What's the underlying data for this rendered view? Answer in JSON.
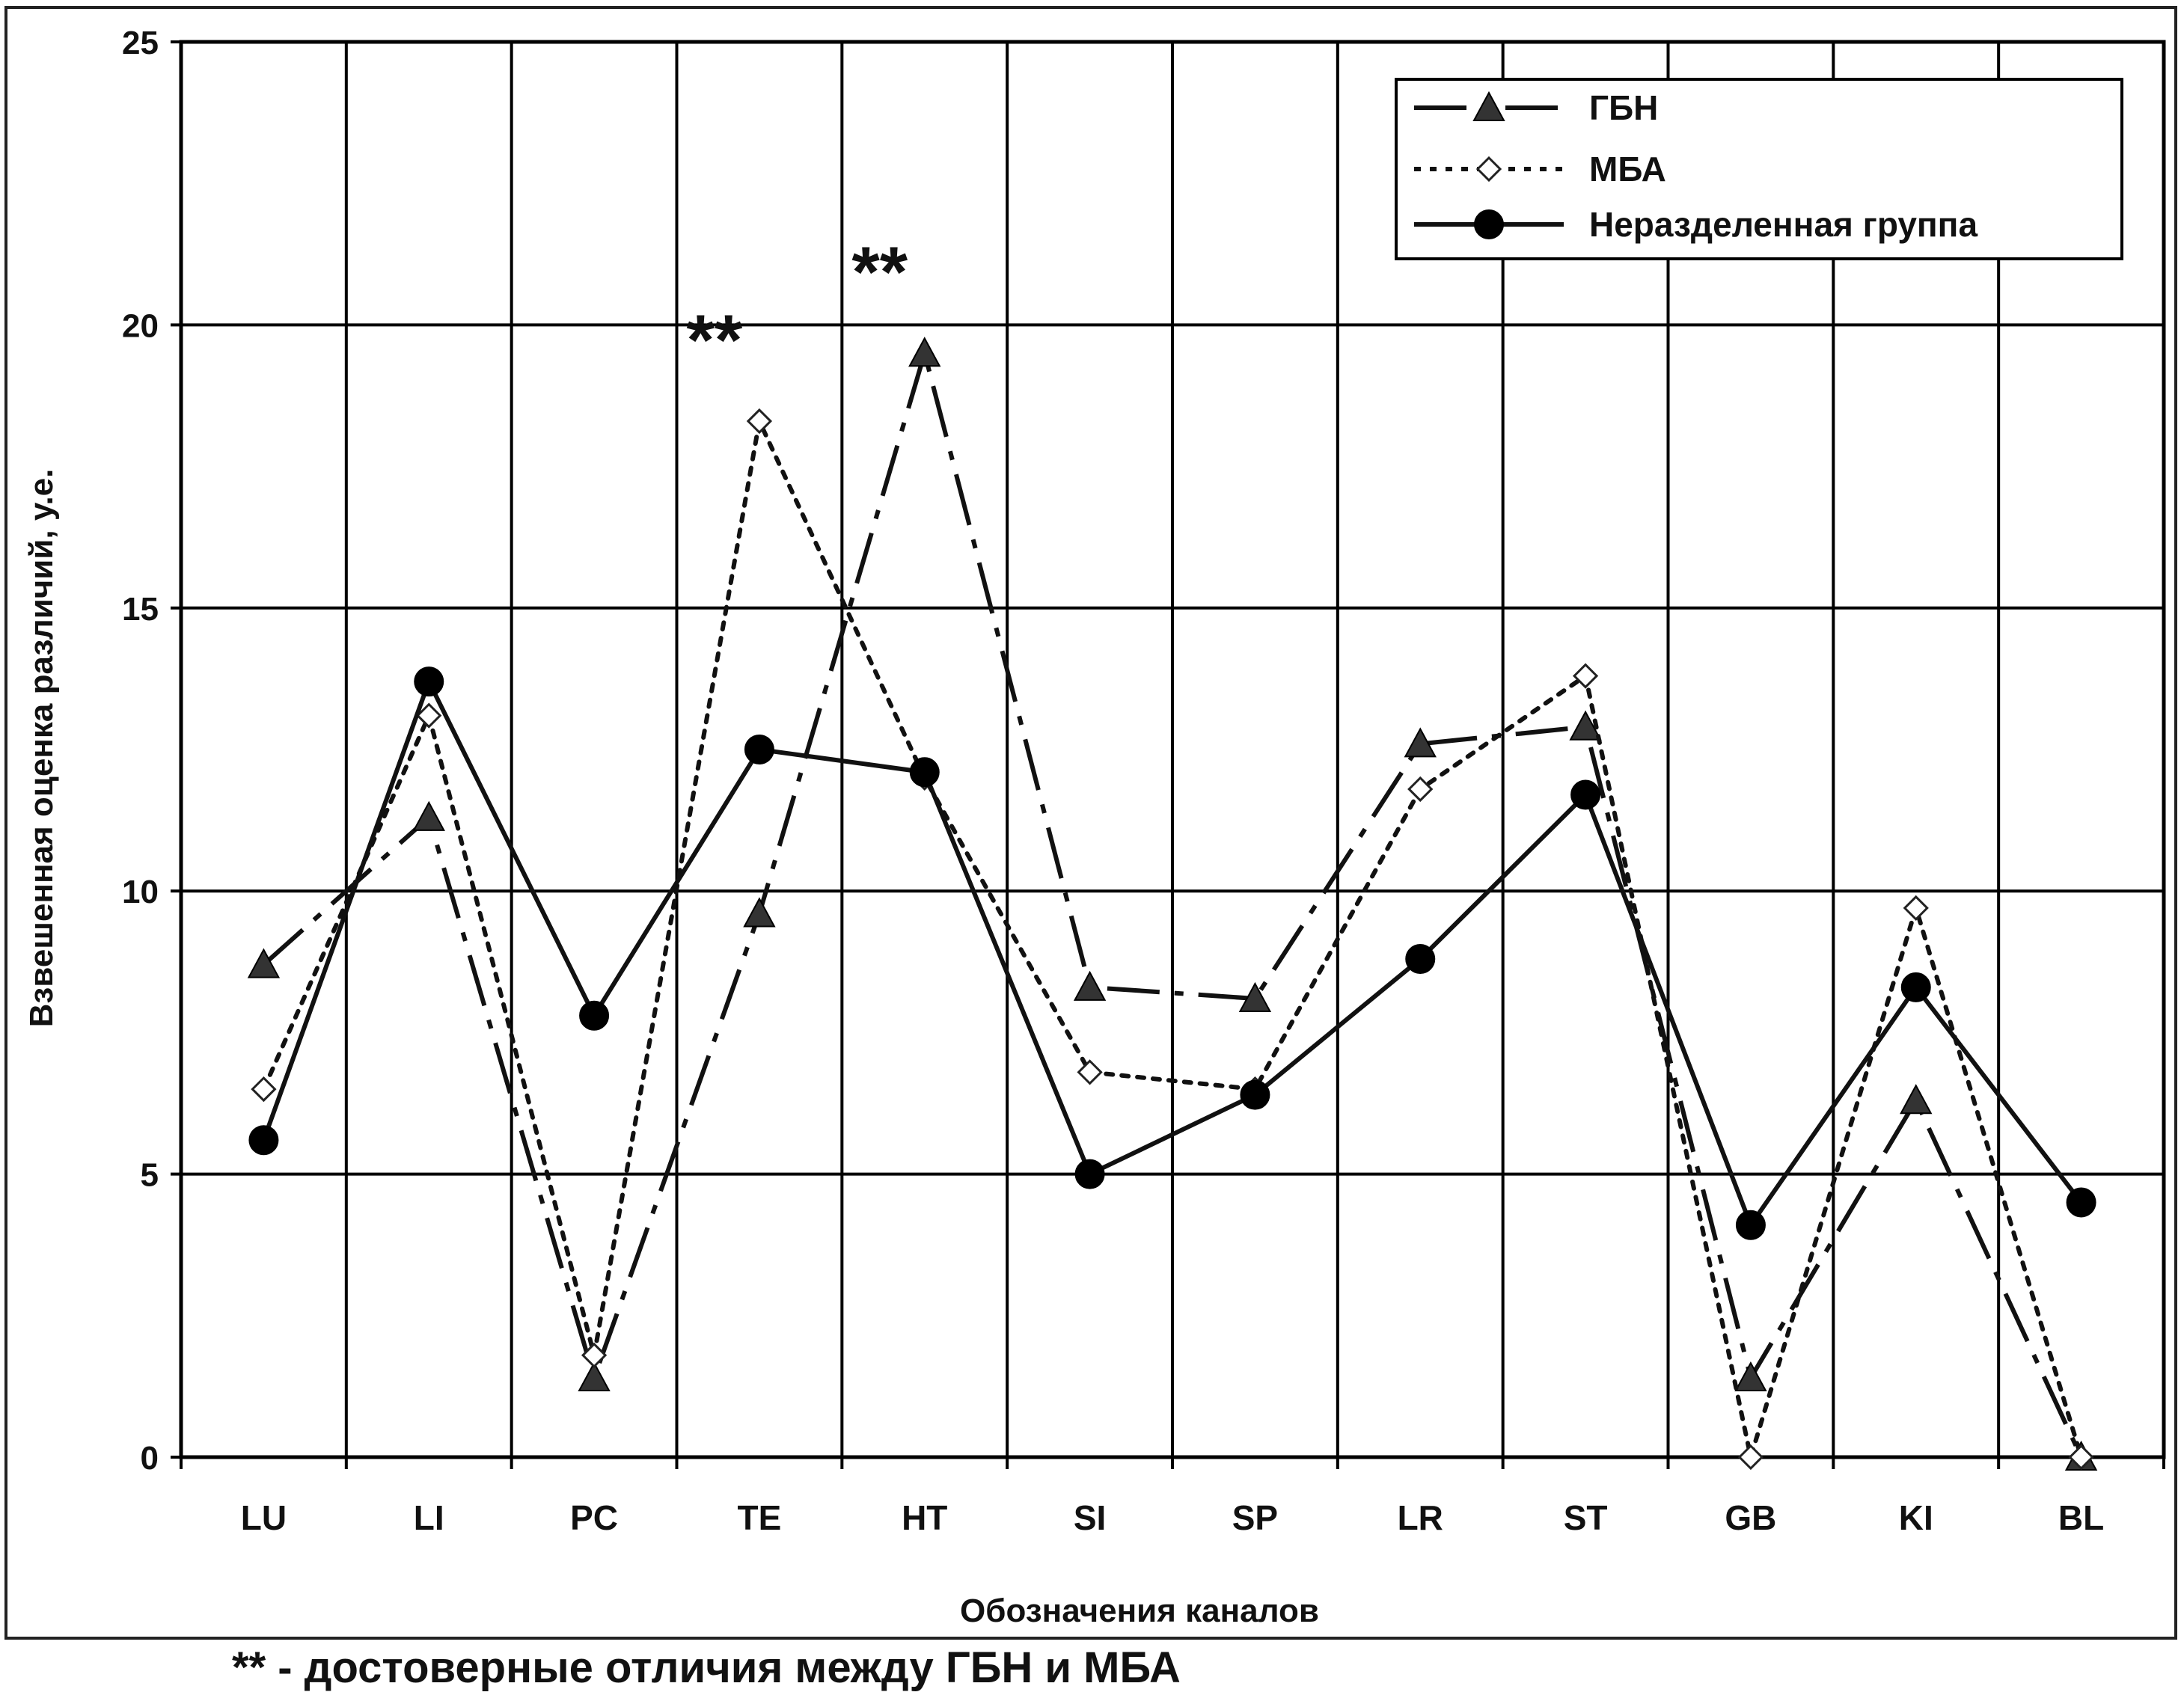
{
  "chart_data": {
    "type": "line",
    "xlabel": "Обозначения каналов",
    "ylabel": "Взвешенная оценка различий, у.е.",
    "ylim": [
      0,
      25
    ],
    "yticks": [
      0,
      5,
      10,
      15,
      20,
      25
    ],
    "grid": true,
    "legend_position": "top-right",
    "categories": [
      "LU",
      "LI",
      "PC",
      "TE",
      "HT",
      "SI",
      "SP",
      "LR",
      "ST",
      "GB",
      "KI",
      "BL"
    ],
    "series": [
      {
        "name": "ГБН",
        "marker": "triangle",
        "line_style": "long-dash",
        "values": [
          8.7,
          11.3,
          1.4,
          9.6,
          19.5,
          8.3,
          8.1,
          12.6,
          12.9,
          1.4,
          6.3,
          0.0
        ]
      },
      {
        "name": "МБА",
        "marker": "diamond",
        "line_style": "dotted",
        "values": [
          6.5,
          13.1,
          1.8,
          18.3,
          12.0,
          6.8,
          6.5,
          11.8,
          13.8,
          0.0,
          9.7,
          0.0
        ]
      },
      {
        "name": "Неразделенная группа",
        "marker": "circle",
        "line_style": "solid",
        "values": [
          5.6,
          13.7,
          7.8,
          12.5,
          12.1,
          5.0,
          6.4,
          8.8,
          11.7,
          4.1,
          8.3,
          4.5
        ]
      }
    ],
    "annotations": [
      {
        "text": "**",
        "category": "TE",
        "y": 19.3
      },
      {
        "text": "**",
        "category": "HT",
        "y": 20.5
      }
    ]
  },
  "footnote": "** - достоверные отличия между ГБН и МБА",
  "colors": {
    "line": "#111111",
    "triangle_fill": "#333333",
    "diamond_fill": "#ffffff",
    "grid": "#000000"
  }
}
